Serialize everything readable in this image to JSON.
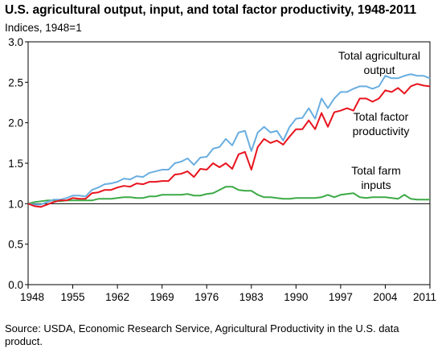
{
  "chart_data": {
    "type": "line",
    "title": "U.S. agricultural output, input, and total factor productivity, 1948-2011",
    "ylabel": "Indices, 1948=1",
    "xlabel": "",
    "xlim": [
      1948,
      2011
    ],
    "ylim": [
      0,
      3
    ],
    "x_ticks": [
      "1948",
      "1955",
      "1962",
      "1969",
      "1976",
      "1983",
      "1990",
      "1997",
      "2004",
      "2011"
    ],
    "y_ticks": [
      "0.0",
      "0.5",
      "1.0",
      "1.5",
      "2.0",
      "2.5",
      "3.0"
    ],
    "grid": false,
    "reference_line": 1.0,
    "x": [
      1948,
      1949,
      1950,
      1951,
      1952,
      1953,
      1954,
      1955,
      1956,
      1957,
      1958,
      1959,
      1960,
      1961,
      1962,
      1963,
      1964,
      1965,
      1966,
      1967,
      1968,
      1969,
      1970,
      1971,
      1972,
      1973,
      1974,
      1975,
      1976,
      1977,
      1978,
      1979,
      1980,
      1981,
      1982,
      1983,
      1984,
      1985,
      1986,
      1987,
      1988,
      1989,
      1990,
      1991,
      1992,
      1993,
      1994,
      1995,
      1996,
      1997,
      1998,
      1999,
      2000,
      2001,
      2002,
      2003,
      2004,
      2005,
      2006,
      2007,
      2008,
      2009,
      2010,
      2011
    ],
    "series": [
      {
        "name": "Total agricultural output",
        "color": "#6aaee0",
        "values": [
          1.0,
          0.99,
          0.99,
          1.02,
          1.05,
          1.05,
          1.07,
          1.1,
          1.1,
          1.09,
          1.17,
          1.2,
          1.24,
          1.25,
          1.27,
          1.31,
          1.3,
          1.34,
          1.33,
          1.38,
          1.4,
          1.42,
          1.42,
          1.5,
          1.52,
          1.56,
          1.48,
          1.57,
          1.58,
          1.68,
          1.7,
          1.8,
          1.72,
          1.88,
          1.9,
          1.65,
          1.88,
          1.95,
          1.88,
          1.9,
          1.78,
          1.95,
          2.05,
          2.06,
          2.18,
          2.05,
          2.3,
          2.18,
          2.3,
          2.38,
          2.38,
          2.42,
          2.45,
          2.45,
          2.42,
          2.45,
          2.58,
          2.55,
          2.55,
          2.58,
          2.6,
          2.58,
          2.58,
          2.55
        ]
      },
      {
        "name": "Total factor productivity",
        "color": "#e8141e",
        "values": [
          1.0,
          0.97,
          0.96,
          0.99,
          1.02,
          1.04,
          1.04,
          1.07,
          1.06,
          1.06,
          1.13,
          1.14,
          1.17,
          1.17,
          1.2,
          1.22,
          1.21,
          1.25,
          1.24,
          1.27,
          1.27,
          1.28,
          1.28,
          1.36,
          1.37,
          1.4,
          1.33,
          1.43,
          1.42,
          1.5,
          1.45,
          1.5,
          1.43,
          1.61,
          1.64,
          1.42,
          1.7,
          1.8,
          1.75,
          1.78,
          1.73,
          1.83,
          1.92,
          1.92,
          2.03,
          1.92,
          2.12,
          1.95,
          2.13,
          2.15,
          2.18,
          2.15,
          2.3,
          2.3,
          2.26,
          2.3,
          2.4,
          2.38,
          2.43,
          2.36,
          2.45,
          2.48,
          2.46,
          2.45
        ]
      },
      {
        "name": "Total farm inputs",
        "color": "#3daa47",
        "values": [
          1.0,
          1.02,
          1.03,
          1.04,
          1.04,
          1.03,
          1.04,
          1.04,
          1.04,
          1.04,
          1.04,
          1.06,
          1.06,
          1.06,
          1.07,
          1.08,
          1.08,
          1.07,
          1.07,
          1.09,
          1.09,
          1.11,
          1.11,
          1.11,
          1.11,
          1.12,
          1.1,
          1.1,
          1.12,
          1.13,
          1.17,
          1.21,
          1.21,
          1.17,
          1.16,
          1.16,
          1.11,
          1.08,
          1.08,
          1.07,
          1.06,
          1.06,
          1.07,
          1.07,
          1.07,
          1.07,
          1.08,
          1.11,
          1.08,
          1.11,
          1.12,
          1.13,
          1.08,
          1.07,
          1.08,
          1.08,
          1.08,
          1.07,
          1.06,
          1.11,
          1.06,
          1.05,
          1.05,
          1.05
        ]
      }
    ],
    "annotations": [
      {
        "series": 0,
        "lines": [
          "Total agricultural",
          "output"
        ]
      },
      {
        "series": 1,
        "lines": [
          "Total factor",
          "productivity"
        ]
      },
      {
        "series": 2,
        "lines": [
          "Total farm",
          "inputs"
        ]
      }
    ],
    "source": "Source: USDA, Economic Research Service, Agricultural Productivity in the U.S. data product."
  }
}
